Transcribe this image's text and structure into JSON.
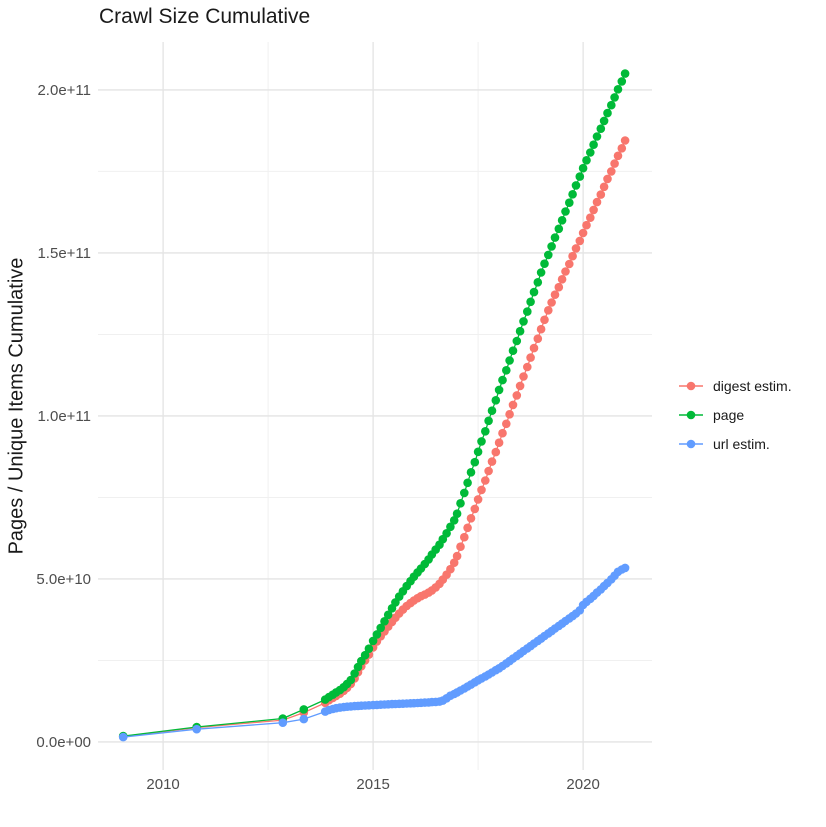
{
  "chart_data": {
    "type": "line",
    "title": "Crawl Size Cumulative",
    "xlabel": "",
    "ylabel": "Pages / Unique Items Cumulative",
    "value_unit": "billions of items (1e9); y axis shown in scientific notation",
    "grid": "on",
    "legend_position": "right",
    "x_axis": {
      "range": [
        2008.45,
        2021.64
      ],
      "ticks": [
        {
          "value": 2010,
          "label": "2010"
        },
        {
          "value": 2015,
          "label": "2015"
        },
        {
          "value": 2020,
          "label": "2020"
        }
      ],
      "minor": [
        2012.5,
        2017.5
      ]
    },
    "y_axis": {
      "range": [
        -8.6,
        214.7
      ],
      "ticks": [
        {
          "value": 0,
          "label": "0.0e+00"
        },
        {
          "value": 50,
          "label": "5.0e+10"
        },
        {
          "value": 100,
          "label": "1.0e+11"
        },
        {
          "value": 150,
          "label": "1.5e+11"
        },
        {
          "value": 200,
          "label": "2.0e+11"
        }
      ],
      "minor": [
        25,
        75,
        125,
        175
      ]
    },
    "series": [
      {
        "name": "digest estim.",
        "color": "#F8766D",
        "points": [
          [
            2009.05,
            1.7
          ],
          [
            2010.8,
            4.4
          ],
          [
            2012.85,
            6.7
          ],
          [
            2013.35,
            9
          ],
          [
            2013.86,
            12
          ],
          [
            2013.95,
            12.8
          ],
          [
            2014.04,
            13.5
          ],
          [
            2014.12,
            14.1
          ],
          [
            2014.21,
            14.8
          ],
          [
            2014.3,
            15.7
          ],
          [
            2014.38,
            16.6
          ],
          [
            2014.47,
            17.8
          ],
          [
            2014.56,
            19.5
          ],
          [
            2014.64,
            21.4
          ],
          [
            2014.72,
            23.2
          ],
          [
            2014.81,
            25
          ],
          [
            2014.9,
            26.8
          ],
          [
            2015.0,
            29
          ],
          [
            2015.09,
            30.8
          ],
          [
            2015.18,
            32.4
          ],
          [
            2015.27,
            33.9
          ],
          [
            2015.36,
            35.4
          ],
          [
            2015.45,
            36.8
          ],
          [
            2015.53,
            38.1
          ],
          [
            2015.62,
            39.4
          ],
          [
            2015.71,
            40.6
          ],
          [
            2015.8,
            41.7
          ],
          [
            2015.89,
            42.6
          ],
          [
            2015.97,
            43.4
          ],
          [
            2016.06,
            44.1
          ],
          [
            2016.14,
            44.7
          ],
          [
            2016.23,
            45.2
          ],
          [
            2016.32,
            45.8
          ],
          [
            2016.4,
            46.5
          ],
          [
            2016.49,
            47.4
          ],
          [
            2016.58,
            48.5
          ],
          [
            2016.66,
            49.8
          ],
          [
            2016.75,
            51.3
          ],
          [
            2016.84,
            53
          ],
          [
            2016.93,
            55
          ],
          [
            2017.0,
            57
          ],
          [
            2017.08,
            59.9
          ],
          [
            2017.17,
            62.8
          ],
          [
            2017.25,
            65.7
          ],
          [
            2017.33,
            68.6
          ],
          [
            2017.42,
            71.5
          ],
          [
            2017.5,
            74.4
          ],
          [
            2017.58,
            77.3
          ],
          [
            2017.67,
            80.2
          ],
          [
            2017.75,
            83.1
          ],
          [
            2017.83,
            86
          ],
          [
            2017.92,
            88.9
          ],
          [
            2018.0,
            91.8
          ],
          [
            2018.08,
            94.7
          ],
          [
            2018.17,
            97.6
          ],
          [
            2018.25,
            100.5
          ],
          [
            2018.33,
            103.4
          ],
          [
            2018.42,
            106.3
          ],
          [
            2018.5,
            109.2
          ],
          [
            2018.58,
            112.1
          ],
          [
            2018.67,
            115
          ],
          [
            2018.75,
            117.9
          ],
          [
            2018.83,
            120.8
          ],
          [
            2018.92,
            123.7
          ],
          [
            2019.0,
            126.6
          ],
          [
            2019.08,
            129.5
          ],
          [
            2019.17,
            132.4
          ],
          [
            2019.25,
            134.8
          ],
          [
            2019.33,
            137.2
          ],
          [
            2019.42,
            139.5
          ],
          [
            2019.5,
            141.9
          ],
          [
            2019.58,
            144.3
          ],
          [
            2019.67,
            146.6
          ],
          [
            2019.75,
            149
          ],
          [
            2019.83,
            151.4
          ],
          [
            2019.92,
            153.7
          ],
          [
            2020.0,
            156.1
          ],
          [
            2020.08,
            158.5
          ],
          [
            2020.17,
            160.8
          ],
          [
            2020.25,
            163.2
          ],
          [
            2020.33,
            165.6
          ],
          [
            2020.42,
            167.9
          ],
          [
            2020.5,
            170.3
          ],
          [
            2020.58,
            172.7
          ],
          [
            2020.67,
            175
          ],
          [
            2020.75,
            177.4
          ],
          [
            2020.83,
            179.8
          ],
          [
            2020.92,
            182.1
          ],
          [
            2021.0,
            184.5
          ]
        ]
      },
      {
        "name": "page",
        "color": "#00BA38",
        "points": [
          [
            2009.05,
            1.8
          ],
          [
            2010.8,
            4.6
          ],
          [
            2012.85,
            7.2
          ],
          [
            2013.35,
            10
          ],
          [
            2013.86,
            13
          ],
          [
            2013.95,
            13.8
          ],
          [
            2014.04,
            14.5
          ],
          [
            2014.12,
            15.2
          ],
          [
            2014.21,
            15.9
          ],
          [
            2014.3,
            16.8
          ],
          [
            2014.38,
            17.8
          ],
          [
            2014.47,
            19
          ],
          [
            2014.56,
            21
          ],
          [
            2014.64,
            23
          ],
          [
            2014.72,
            24.8
          ],
          [
            2014.81,
            26.6
          ],
          [
            2014.9,
            28.6
          ],
          [
            2015.0,
            31
          ],
          [
            2015.09,
            33
          ],
          [
            2015.18,
            35
          ],
          [
            2015.27,
            37
          ],
          [
            2015.36,
            39
          ],
          [
            2015.45,
            41
          ],
          [
            2015.53,
            42.8
          ],
          [
            2015.62,
            44.6
          ],
          [
            2015.71,
            46.2
          ],
          [
            2015.8,
            47.8
          ],
          [
            2015.89,
            49.3
          ],
          [
            2015.97,
            50.7
          ],
          [
            2016.06,
            52
          ],
          [
            2016.14,
            53.2
          ],
          [
            2016.23,
            54.6
          ],
          [
            2016.32,
            56
          ],
          [
            2016.4,
            57.5
          ],
          [
            2016.49,
            59
          ],
          [
            2016.58,
            60.5
          ],
          [
            2016.66,
            62.2
          ],
          [
            2016.75,
            64
          ],
          [
            2016.84,
            66
          ],
          [
            2016.93,
            68
          ],
          [
            2017.0,
            70
          ],
          [
            2017.08,
            73.2
          ],
          [
            2017.17,
            76.4
          ],
          [
            2017.25,
            79.5
          ],
          [
            2017.33,
            82.7
          ],
          [
            2017.42,
            85.8
          ],
          [
            2017.5,
            89
          ],
          [
            2017.58,
            92.2
          ],
          [
            2017.67,
            95.3
          ],
          [
            2017.75,
            98.5
          ],
          [
            2017.83,
            101.6
          ],
          [
            2017.92,
            104.8
          ],
          [
            2018.0,
            108
          ],
          [
            2018.08,
            111
          ],
          [
            2018.17,
            114
          ],
          [
            2018.25,
            117
          ],
          [
            2018.33,
            120
          ],
          [
            2018.42,
            123
          ],
          [
            2018.5,
            126
          ],
          [
            2018.58,
            129
          ],
          [
            2018.67,
            132
          ],
          [
            2018.75,
            135
          ],
          [
            2018.83,
            138
          ],
          [
            2018.92,
            141
          ],
          [
            2019.0,
            144
          ],
          [
            2019.08,
            146.7
          ],
          [
            2019.17,
            149.4
          ],
          [
            2019.25,
            152
          ],
          [
            2019.33,
            154.7
          ],
          [
            2019.42,
            157.4
          ],
          [
            2019.5,
            160
          ],
          [
            2019.58,
            162.7
          ],
          [
            2019.67,
            165.4
          ],
          [
            2019.75,
            168
          ],
          [
            2019.83,
            170.7
          ],
          [
            2019.92,
            173.4
          ],
          [
            2020.0,
            176
          ],
          [
            2020.08,
            178.4
          ],
          [
            2020.17,
            180.8
          ],
          [
            2020.25,
            183.2
          ],
          [
            2020.33,
            185.7
          ],
          [
            2020.42,
            188.1
          ],
          [
            2020.5,
            190.5
          ],
          [
            2020.58,
            192.9
          ],
          [
            2020.67,
            195.3
          ],
          [
            2020.75,
            197.7
          ],
          [
            2020.83,
            200.2
          ],
          [
            2020.92,
            202.6
          ],
          [
            2021.0,
            205
          ]
        ]
      },
      {
        "name": "url estim.",
        "color": "#619CFF",
        "points": [
          [
            2009.05,
            1.5
          ],
          [
            2010.8,
            3.9
          ],
          [
            2012.85,
            5.9
          ],
          [
            2013.35,
            7
          ],
          [
            2013.86,
            9.3
          ],
          [
            2013.95,
            9.8
          ],
          [
            2014.04,
            10.1
          ],
          [
            2014.12,
            10.35
          ],
          [
            2014.21,
            10.55
          ],
          [
            2014.3,
            10.7
          ],
          [
            2014.38,
            10.82
          ],
          [
            2014.47,
            10.92
          ],
          [
            2014.56,
            11
          ],
          [
            2014.64,
            11.07
          ],
          [
            2014.72,
            11.13
          ],
          [
            2014.81,
            11.19
          ],
          [
            2014.9,
            11.25
          ],
          [
            2015.0,
            11.3
          ],
          [
            2015.09,
            11.36
          ],
          [
            2015.18,
            11.42
          ],
          [
            2015.27,
            11.48
          ],
          [
            2015.36,
            11.54
          ],
          [
            2015.45,
            11.6
          ],
          [
            2015.53,
            11.65
          ],
          [
            2015.62,
            11.7
          ],
          [
            2015.71,
            11.75
          ],
          [
            2015.8,
            11.8
          ],
          [
            2015.89,
            11.85
          ],
          [
            2015.97,
            11.9
          ],
          [
            2016.06,
            11.96
          ],
          [
            2016.14,
            12.02
          ],
          [
            2016.23,
            12.08
          ],
          [
            2016.32,
            12.15
          ],
          [
            2016.4,
            12.22
          ],
          [
            2016.49,
            12.3
          ],
          [
            2016.58,
            12.38
          ],
          [
            2016.66,
            12.7
          ],
          [
            2016.75,
            13.4
          ],
          [
            2016.84,
            14.2
          ],
          [
            2016.93,
            14.7
          ],
          [
            2017.0,
            15.2
          ],
          [
            2017.08,
            15.8
          ],
          [
            2017.17,
            16.4
          ],
          [
            2017.25,
            17
          ],
          [
            2017.33,
            17.6
          ],
          [
            2017.42,
            18.3
          ],
          [
            2017.5,
            18.9
          ],
          [
            2017.58,
            19.5
          ],
          [
            2017.67,
            20.1
          ],
          [
            2017.75,
            20.7
          ],
          [
            2017.83,
            21.3
          ],
          [
            2017.92,
            22
          ],
          [
            2018.0,
            22.6
          ],
          [
            2018.08,
            23.3
          ],
          [
            2018.17,
            24.1
          ],
          [
            2018.25,
            24.8
          ],
          [
            2018.33,
            25.6
          ],
          [
            2018.42,
            26.4
          ],
          [
            2018.5,
            27.1
          ],
          [
            2018.58,
            27.9
          ],
          [
            2018.67,
            28.7
          ],
          [
            2018.75,
            29.4
          ],
          [
            2018.83,
            30.2
          ],
          [
            2018.92,
            31
          ],
          [
            2019.0,
            31.7
          ],
          [
            2019.08,
            32.5
          ],
          [
            2019.17,
            33.3
          ],
          [
            2019.25,
            34
          ],
          [
            2019.33,
            34.8
          ],
          [
            2019.42,
            35.6
          ],
          [
            2019.5,
            36.3
          ],
          [
            2019.58,
            37.1
          ],
          [
            2019.67,
            37.9
          ],
          [
            2019.75,
            38.6
          ],
          [
            2019.83,
            39.4
          ],
          [
            2019.92,
            40.4
          ],
          [
            2020.0,
            42
          ],
          [
            2020.08,
            43
          ],
          [
            2020.17,
            43.9
          ],
          [
            2020.25,
            44.8
          ],
          [
            2020.33,
            45.8
          ],
          [
            2020.42,
            46.8
          ],
          [
            2020.5,
            47.8
          ],
          [
            2020.58,
            48.8
          ],
          [
            2020.67,
            49.9
          ],
          [
            2020.75,
            51
          ],
          [
            2020.83,
            52.2
          ],
          [
            2020.92,
            52.9
          ],
          [
            2021.0,
            53.4
          ]
        ]
      }
    ]
  }
}
